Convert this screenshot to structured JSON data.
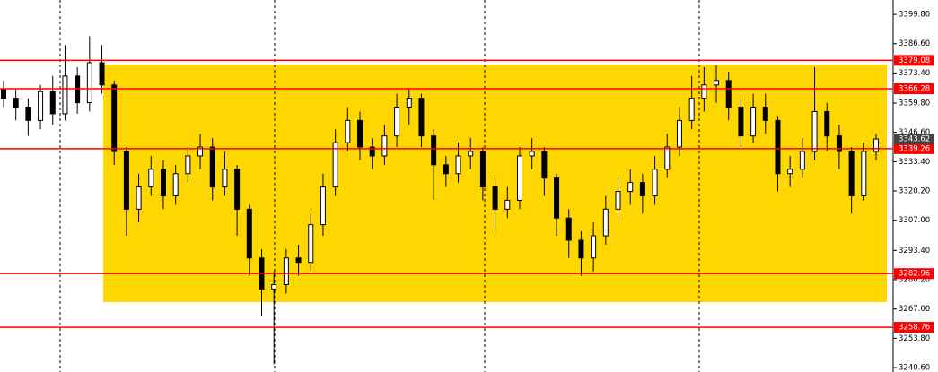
{
  "chart_data": {
    "type": "candlestick",
    "open": [
      3366,
      3362,
      3358,
      3352,
      3365,
      3355,
      3372,
      3360,
      3378,
      3368,
      3338,
      3312,
      3322,
      3330,
      3318,
      3328,
      3336,
      3340,
      3322,
      3330,
      3312,
      3290,
      3276,
      3278,
      3290,
      3288,
      3305,
      3322,
      3342,
      3352,
      3340,
      3336,
      3345,
      3358,
      3362,
      3345,
      3332,
      3328,
      3336,
      3338,
      3322,
      3312,
      3316,
      3336,
      3338,
      3326,
      3308,
      3298,
      3290,
      3300,
      3312,
      3320,
      3324,
      3318,
      3330,
      3340,
      3352,
      3362,
      3368,
      3370,
      3358,
      3345,
      3358,
      3352,
      3328,
      3330,
      3338,
      3356,
      3345,
      3338,
      3318,
      3338
    ],
    "high": [
      3370,
      3366,
      3362,
      3368,
      3372,
      3386,
      3376,
      3390,
      3386,
      3370,
      3340,
      3328,
      3336,
      3334,
      3332,
      3340,
      3346,
      3344,
      3338,
      3332,
      3314,
      3294,
      3284,
      3294,
      3296,
      3310,
      3328,
      3348,
      3358,
      3356,
      3344,
      3350,
      3364,
      3366,
      3364,
      3348,
      3336,
      3342,
      3344,
      3340,
      3326,
      3322,
      3340,
      3344,
      3340,
      3328,
      3312,
      3302,
      3306,
      3318,
      3326,
      3330,
      3328,
      3336,
      3346,
      3358,
      3372,
      3376,
      3377,
      3374,
      3362,
      3364,
      3364,
      3354,
      3336,
      3344,
      3376,
      3360,
      3350,
      3340,
      3342,
      3346
    ],
    "low": [
      3358,
      3352,
      3345,
      3348,
      3350,
      3352,
      3355,
      3356,
      3364,
      3332,
      3300,
      3306,
      3318,
      3312,
      3314,
      3324,
      3330,
      3316,
      3318,
      3300,
      3282,
      3264,
      3242,
      3274,
      3282,
      3284,
      3300,
      3318,
      3338,
      3334,
      3330,
      3332,
      3340,
      3350,
      3340,
      3316,
      3322,
      3324,
      3330,
      3316,
      3302,
      3308,
      3312,
      3330,
      3318,
      3300,
      3290,
      3282,
      3284,
      3296,
      3308,
      3314,
      3310,
      3314,
      3326,
      3336,
      3348,
      3356,
      3360,
      3352,
      3340,
      3342,
      3346,
      3320,
      3322,
      3326,
      3334,
      3338,
      3330,
      3310,
      3316,
      3334
    ],
    "close": [
      3362,
      3358,
      3352,
      3365,
      3355,
      3372,
      3360,
      3378,
      3368,
      3338,
      3312,
      3322,
      3330,
      3318,
      3328,
      3336,
      3340,
      3322,
      3330,
      3312,
      3290,
      3276,
      3278,
      3290,
      3288,
      3305,
      3322,
      3342,
      3352,
      3340,
      3336,
      3345,
      3358,
      3362,
      3345,
      3332,
      3328,
      3336,
      3338,
      3322,
      3312,
      3316,
      3336,
      3338,
      3326,
      3308,
      3298,
      3290,
      3300,
      3312,
      3320,
      3324,
      3318,
      3330,
      3340,
      3352,
      3362,
      3368,
      3370,
      3358,
      3345,
      3358,
      3352,
      3328,
      3330,
      3338,
      3356,
      3345,
      3338,
      3318,
      3338,
      3343.62
    ],
    "up_color": "#ffffff",
    "down_color": "#000000",
    "level_color": "#ff0000",
    "ylim": [
      3240.6,
      3406.3
    ],
    "yticks": [
      {
        "value": 3399.8,
        "label": "3399.80"
      },
      {
        "value": 3386.6,
        "label": "3386.60"
      },
      {
        "value": 3373.4,
        "label": "3373.40"
      },
      {
        "value": 3359.8,
        "label": "3359.80"
      },
      {
        "value": 3346.6,
        "label": "3346.60"
      },
      {
        "value": 3333.4,
        "label": "3333.40"
      },
      {
        "value": 3320.2,
        "label": "3320.20"
      },
      {
        "value": 3307,
        "label": "3307.00"
      },
      {
        "value": 3293.4,
        "label": "3293.40"
      },
      {
        "value": 3280.2,
        "label": "3280.20"
      },
      {
        "value": 3267,
        "label": "3267.00"
      },
      {
        "value": 3253.8,
        "label": "3253.80"
      },
      {
        "value": 3240.6,
        "label": "3240.60"
      }
    ],
    "levels": [
      {
        "value": 3379.08,
        "label": "3379.08"
      },
      {
        "value": 3366.28,
        "label": "3366.28"
      },
      {
        "value": 3339.26,
        "label": "3339.26"
      },
      {
        "value": 3282.96,
        "label": "3282.96"
      },
      {
        "value": 3258.76,
        "label": "3258.76"
      }
    ],
    "last_price": {
      "value": 3343.62,
      "label": "3343.62"
    }
  }
}
